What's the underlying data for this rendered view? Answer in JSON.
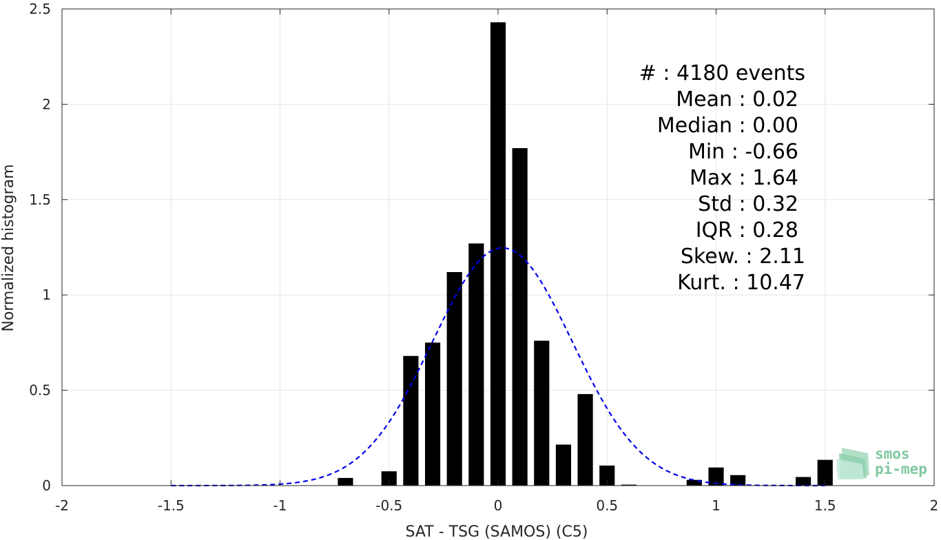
{
  "chart_data": {
    "type": "bar",
    "xlabel": "SAT - TSG (SAMOS) (C5)",
    "ylabel": "Normalized histogram",
    "xlim": [
      -2,
      2
    ],
    "ylim": [
      0,
      2.5
    ],
    "xticks": [
      -2,
      -1.5,
      -1,
      -0.5,
      0,
      0.5,
      1,
      1.5,
      2
    ],
    "xtick_labels": [
      "-2",
      "-1.5",
      "-1",
      "-0.5",
      "0",
      "0.5",
      "1",
      "1.5",
      "2"
    ],
    "yticks": [
      0,
      0.5,
      1,
      1.5,
      2,
      2.5
    ],
    "ytick_labels": [
      "0",
      "0.5",
      "1",
      "1.5",
      "2",
      "2.5"
    ],
    "grid": true,
    "bar_width": 0.07,
    "bars": [
      {
        "x": -0.7,
        "y": 0.04
      },
      {
        "x": -0.5,
        "y": 0.075
      },
      {
        "x": -0.4,
        "y": 0.68
      },
      {
        "x": -0.3,
        "y": 0.75
      },
      {
        "x": -0.2,
        "y": 1.12
      },
      {
        "x": -0.1,
        "y": 1.27
      },
      {
        "x": 0.0,
        "y": 2.43
      },
      {
        "x": 0.1,
        "y": 1.77
      },
      {
        "x": 0.2,
        "y": 0.76
      },
      {
        "x": 0.3,
        "y": 0.215
      },
      {
        "x": 0.4,
        "y": 0.48
      },
      {
        "x": 0.5,
        "y": 0.105
      },
      {
        "x": 0.6,
        "y": 0.005
      },
      {
        "x": 0.9,
        "y": 0.03
      },
      {
        "x": 1.0,
        "y": 0.095
      },
      {
        "x": 1.1,
        "y": 0.055
      },
      {
        "x": 1.4,
        "y": 0.045
      },
      {
        "x": 1.5,
        "y": 0.135
      }
    ],
    "fit_curve": {
      "style": "dashed",
      "color": "#0000ee",
      "distribution": "normal",
      "mean": 0.02,
      "std": 0.32,
      "x_range": [
        -1.5,
        1.5
      ]
    },
    "stats": [
      {
        "label": "#  : 4180 events"
      },
      {
        "label": "Mean : 0.02"
      },
      {
        "label": "Median : 0.00"
      },
      {
        "label": "Min : -0.66"
      },
      {
        "label": "Max : 1.64"
      },
      {
        "label": "Std : 0.32"
      },
      {
        "label": "IQR : 0.28"
      },
      {
        "label": "Skew. : 2.11"
      },
      {
        "label": "Kurt. : 10.47"
      }
    ]
  },
  "logo": {
    "line1": "smos",
    "line2": "pi-mep",
    "color": "#7fc8a0"
  }
}
